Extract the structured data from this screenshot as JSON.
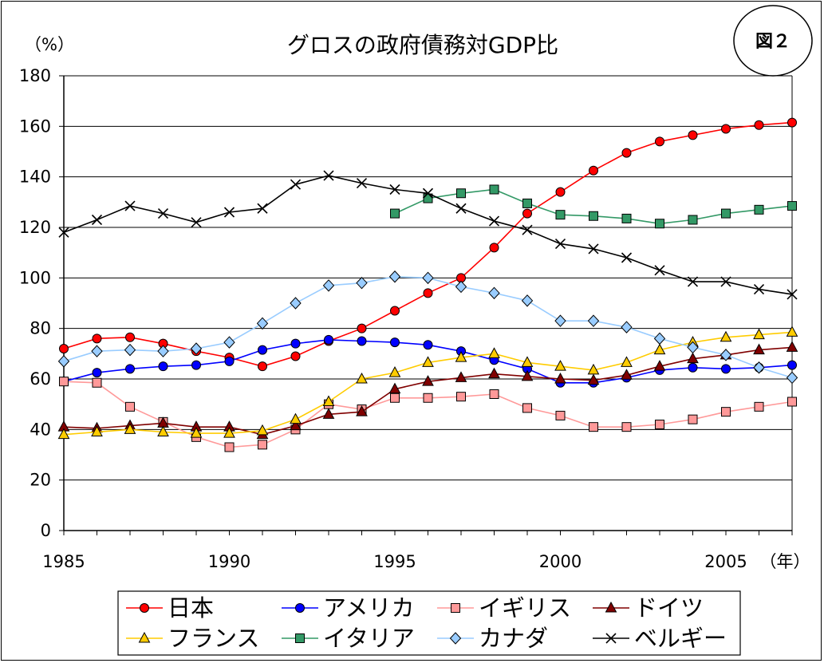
{
  "chart_data": {
    "type": "line",
    "title": "グロスの政府債務対GDP比",
    "badge": "図２",
    "ylabel": "（%）",
    "xlabel": "（年）",
    "ylim": [
      0,
      180
    ],
    "xlim": [
      1985,
      2007
    ],
    "yticks": [
      0,
      20,
      40,
      60,
      80,
      100,
      120,
      140,
      160,
      180
    ],
    "xtick_labels": [
      1985,
      1990,
      1995,
      2000,
      2005
    ],
    "grid": true,
    "legend_position": "bottom",
    "series": [
      {
        "name": "日本",
        "color": "#ff0000",
        "marker": "circle",
        "x": [
          1985,
          1986,
          1987,
          1988,
          1989,
          1990,
          1991,
          1992,
          1993,
          1994,
          1995,
          1996,
          1997,
          1998,
          1999,
          2000,
          2001,
          2002,
          2003,
          2004,
          2005,
          2006,
          2007
        ],
        "y": [
          72,
          76,
          76.5,
          74,
          71,
          68.5,
          65,
          69,
          75,
          80,
          87,
          94,
          100,
          112,
          125.5,
          134,
          142.5,
          149.5,
          154,
          156.5,
          159,
          160.5,
          161.5
        ]
      },
      {
        "name": "アメリカ",
        "color": "#0000ff",
        "marker": "circle",
        "x": [
          1985,
          1986,
          1987,
          1988,
          1989,
          1990,
          1991,
          1992,
          1993,
          1994,
          1995,
          1996,
          1997,
          1998,
          1999,
          2000,
          2001,
          2002,
          2003,
          2004,
          2005,
          2006,
          2007
        ],
        "y": [
          59,
          62.5,
          64,
          65,
          65.5,
          67,
          71.5,
          74,
          75.5,
          75,
          74.5,
          73.5,
          71,
          67.5,
          64,
          58.5,
          58.5,
          60.5,
          63.5,
          64.5,
          64,
          64.5,
          65.5
        ]
      },
      {
        "name": "イギリス",
        "color": "#ff9999",
        "marker": "square",
        "x": [
          1985,
          1986,
          1987,
          1988,
          1989,
          1990,
          1991,
          1992,
          1993,
          1994,
          1995,
          1996,
          1997,
          1998,
          1999,
          2000,
          2001,
          2002,
          2003,
          2004,
          2005,
          2006,
          2007
        ],
        "y": [
          59,
          58.5,
          49,
          43,
          37,
          33,
          34,
          40,
          50,
          48,
          52.5,
          52.5,
          53,
          54,
          48.5,
          45.5,
          41,
          41,
          42,
          44,
          47,
          49,
          51
        ]
      },
      {
        "name": "ドイツ",
        "color": "#800000",
        "marker": "triangle",
        "x": [
          1985,
          1986,
          1987,
          1988,
          1989,
          1990,
          1991,
          1992,
          1993,
          1994,
          1995,
          1996,
          1997,
          1998,
          1999,
          2000,
          2001,
          2002,
          2003,
          2004,
          2005,
          2006,
          2007
        ],
        "y": [
          41,
          40.5,
          41.5,
          42.5,
          41,
          41,
          38,
          41.5,
          46,
          47,
          56,
          59,
          60.5,
          62,
          61,
          60,
          59.5,
          61.5,
          65,
          68,
          69.5,
          71.5,
          72.5
        ]
      },
      {
        "name": "フランス",
        "color": "#ffcc00",
        "marker": "triangle",
        "x": [
          1985,
          1986,
          1987,
          1988,
          1989,
          1990,
          1991,
          1992,
          1993,
          1994,
          1995,
          1996,
          1997,
          1998,
          1999,
          2000,
          2001,
          2002,
          2003,
          2004,
          2005,
          2006,
          2007
        ],
        "y": [
          38,
          39,
          40,
          39,
          38.5,
          38.5,
          39.5,
          44,
          51,
          60,
          62.5,
          66.5,
          68.5,
          70,
          66.5,
          65,
          63.5,
          66.5,
          71.5,
          74.5,
          76.5,
          77.5,
          78.5
        ]
      },
      {
        "name": "イタリア",
        "color": "#339966",
        "marker": "square",
        "x": [
          1995,
          1996,
          1997,
          1998,
          1999,
          2000,
          2001,
          2002,
          2003,
          2004,
          2005,
          2006,
          2007
        ],
        "y": [
          125.5,
          131.5,
          133.5,
          135,
          129.5,
          125,
          124.5,
          123.5,
          121.5,
          123,
          125.5,
          127,
          128.5
        ]
      },
      {
        "name": "カナダ",
        "color": "#99ccff",
        "marker": "diamond",
        "x": [
          1985,
          1986,
          1987,
          1988,
          1989,
          1990,
          1991,
          1992,
          1993,
          1994,
          1995,
          1996,
          1997,
          1998,
          1999,
          2000,
          2001,
          2002,
          2003,
          2004,
          2005,
          2006,
          2007
        ],
        "y": [
          67,
          71,
          71.5,
          71,
          72,
          74.5,
          82,
          90,
          97,
          98,
          100.5,
          100,
          96.5,
          94,
          91,
          83,
          83,
          80.5,
          76,
          72.5,
          69.5,
          64.5,
          60.5
        ]
      },
      {
        "name": "ベルギー",
        "color": "#000000",
        "marker": "x",
        "x": [
          1985,
          1986,
          1987,
          1988,
          1989,
          1990,
          1991,
          1992,
          1993,
          1994,
          1995,
          1996,
          1997,
          1998,
          1999,
          2000,
          2001,
          2002,
          2003,
          2004,
          2005,
          2006,
          2007
        ],
        "y": [
          118,
          123,
          128.5,
          125.5,
          122,
          126,
          127.5,
          137,
          140.5,
          137.5,
          135,
          133.5,
          127.5,
          122.5,
          119,
          113.5,
          111.5,
          108,
          103,
          98.5,
          98.5,
          95.5,
          93.5
        ]
      }
    ]
  }
}
